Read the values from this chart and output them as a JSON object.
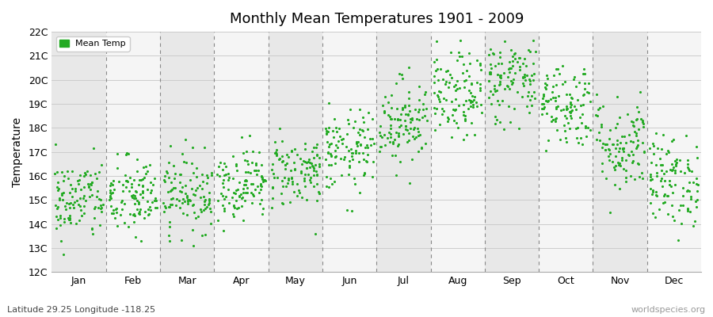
{
  "title": "Monthly Mean Temperatures 1901 - 2009",
  "ylabel": "Temperature",
  "xlabel_bottom": "Latitude 29.25 Longitude -118.25",
  "watermark": "worldspecies.org",
  "legend_label": "Mean Temp",
  "dot_color": "#22aa22",
  "fig_bg_color": "#ffffff",
  "plot_bg_color": "#ffffff",
  "band_color_even": "#e8e8e8",
  "band_color_odd": "#f5f5f5",
  "ylim": [
    12,
    22
  ],
  "ytick_labels": [
    "12C",
    "13C",
    "14C",
    "15C",
    "16C",
    "17C",
    "18C",
    "19C",
    "20C",
    "21C",
    "22C"
  ],
  "ytick_values": [
    12,
    13,
    14,
    15,
    16,
    17,
    18,
    19,
    20,
    21,
    22
  ],
  "months": [
    "Jan",
    "Feb",
    "Mar",
    "Apr",
    "May",
    "Jun",
    "Jul",
    "Aug",
    "Sep",
    "Oct",
    "Nov",
    "Dec"
  ],
  "monthly_mean": [
    15.0,
    15.1,
    15.3,
    15.7,
    16.2,
    17.0,
    18.3,
    19.3,
    20.0,
    19.0,
    17.3,
    15.8
  ],
  "monthly_std": [
    0.85,
    0.85,
    0.8,
    0.75,
    0.75,
    0.85,
    0.9,
    0.9,
    0.9,
    0.9,
    1.0,
    0.95
  ],
  "n_years": 109,
  "random_seed": 42,
  "dot_size": 5,
  "title_fontsize": 13,
  "tick_fontsize": 9,
  "ylabel_fontsize": 10,
  "legend_fontsize": 8,
  "annot_fontsize": 8
}
